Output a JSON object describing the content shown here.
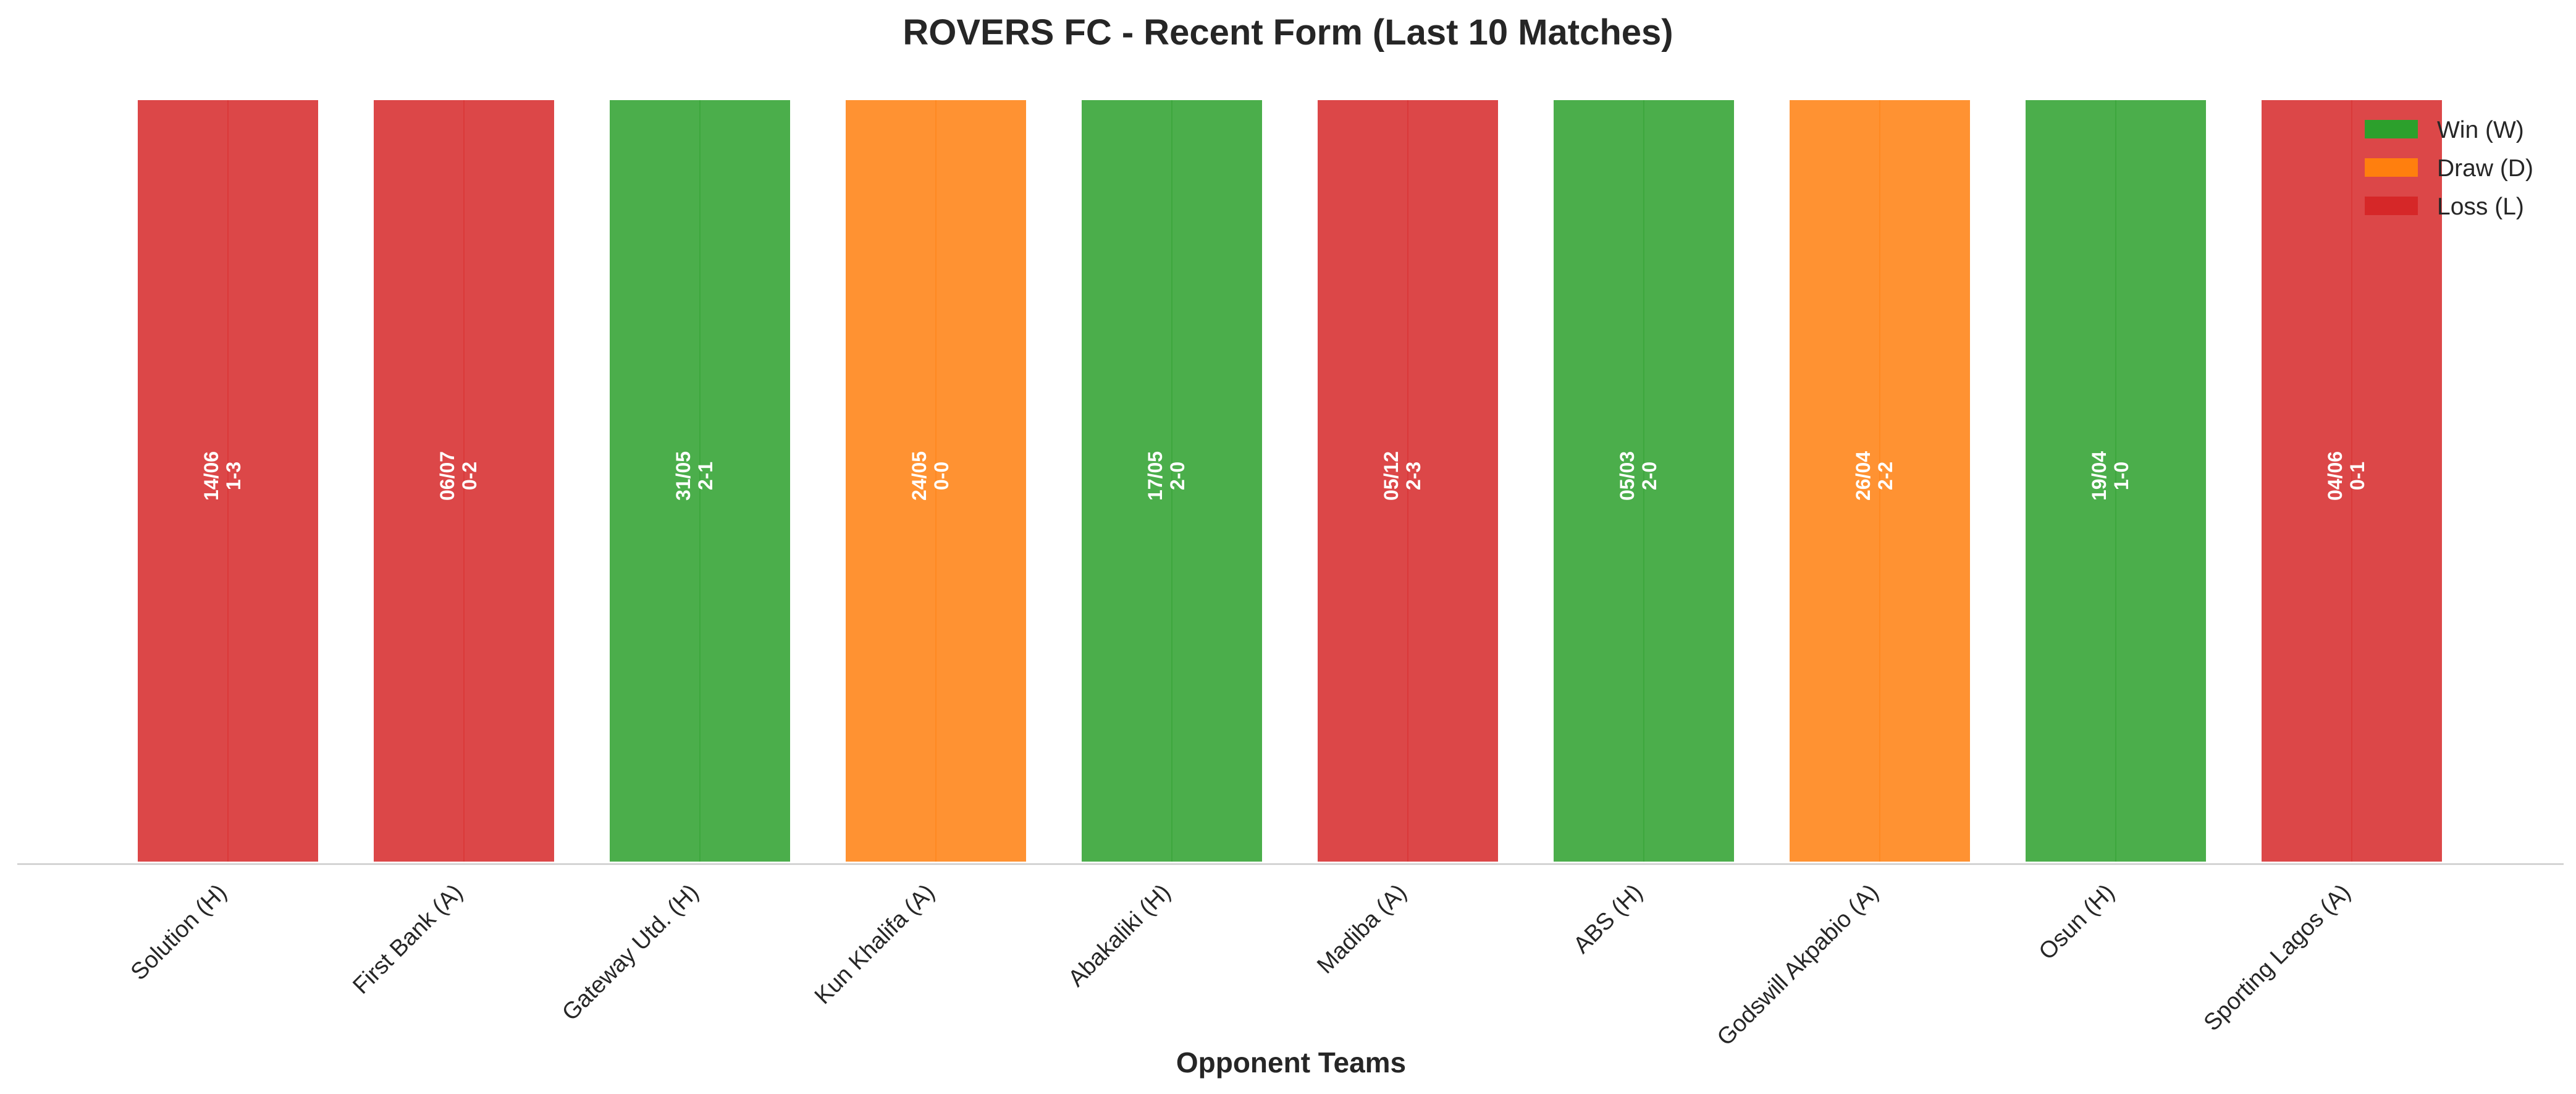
{
  "chart_data": {
    "type": "bar",
    "title": "ROVERS FC - Recent Form (Last 10 Matches)",
    "xlabel": "Opponent Teams",
    "ylabel": "",
    "ylim": [
      0,
      1
    ],
    "grid": false,
    "legend_position": "top-right",
    "legend": [
      {
        "key": "W",
        "label": "Win (W)",
        "color": "#2ca02c"
      },
      {
        "key": "D",
        "label": "Draw (D)",
        "color": "#ff7f0e"
      },
      {
        "key": "L",
        "label": "Loss (L)",
        "color": "#d62728"
      }
    ],
    "categories": [
      "Solution (H)",
      "First Bank (A)",
      "Gateway Utd. (H)",
      "Kun Khalifa (A)",
      "Abakaliki (H)",
      "Madiba (A)",
      "ABS (H)",
      "Godswill Akpabio (A)",
      "Osun (H)",
      "Sporting Lagos (A)"
    ],
    "values": [
      1,
      1,
      1,
      1,
      1,
      1,
      1,
      1,
      1,
      1
    ],
    "results": [
      "L",
      "L",
      "W",
      "D",
      "W",
      "L",
      "W",
      "D",
      "W",
      "L"
    ],
    "dates": [
      "14/06",
      "06/07",
      "31/05",
      "24/05",
      "17/05",
      "05/12",
      "05/03",
      "26/04",
      "19/04",
      "04/06"
    ],
    "scores": [
      "1-3",
      "0-2",
      "2-1",
      "0-0",
      "2-0",
      "2-3",
      "2-0",
      "2-2",
      "1-0",
      "0-1"
    ]
  }
}
